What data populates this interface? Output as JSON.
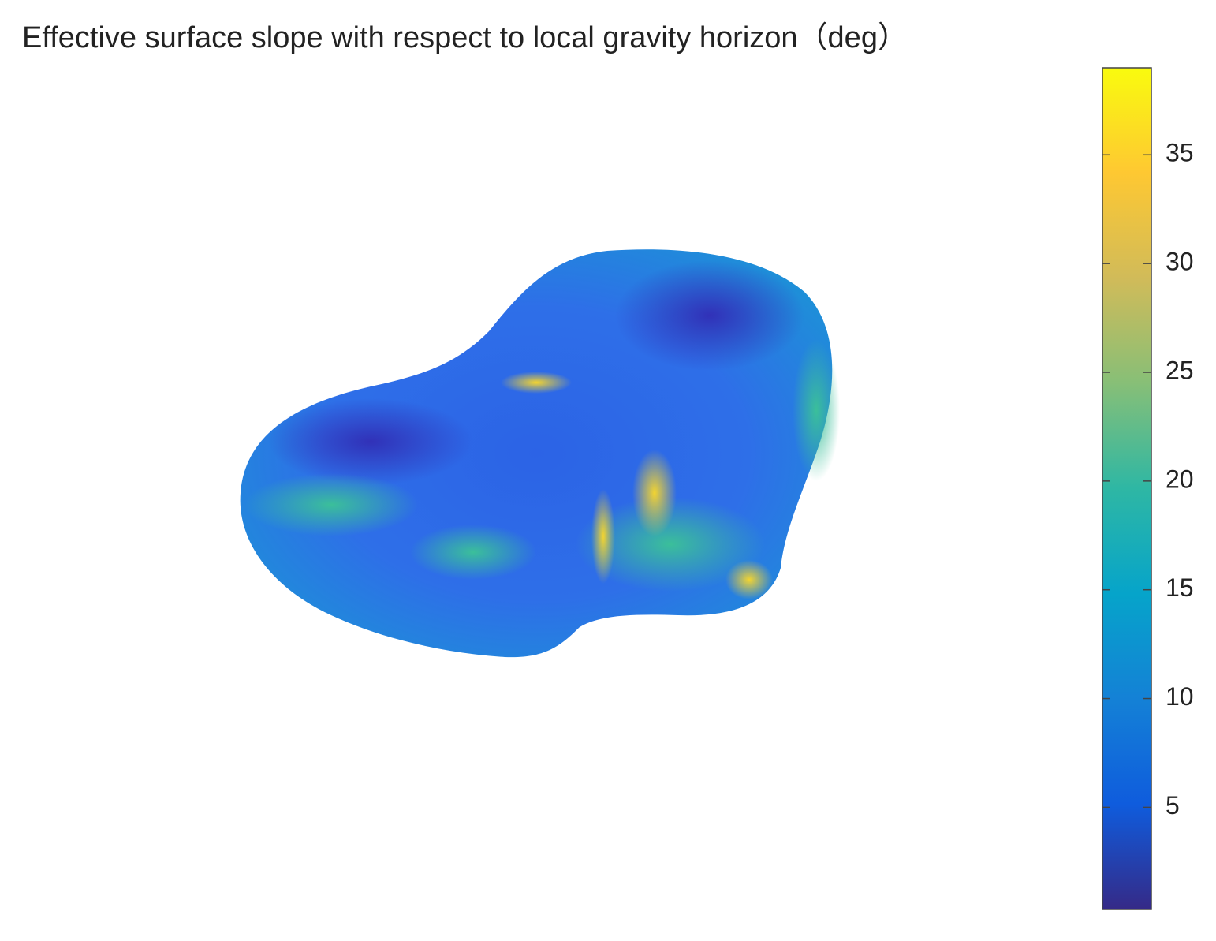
{
  "chart_data": {
    "type": "surface",
    "title": "Effective surface slope with respect to local gravity horizon（deg）",
    "clim": [
      0.3,
      39
    ],
    "cticks": [
      5,
      10,
      15,
      20,
      25,
      30,
      35
    ],
    "colormap": [
      "#352a87",
      "#0f5cdd",
      "#1481d6",
      "#06a4ca",
      "#2eb7a4",
      "#87bf77",
      "#d1bb59",
      "#fec832",
      "#f9fb0e"
    ]
  }
}
